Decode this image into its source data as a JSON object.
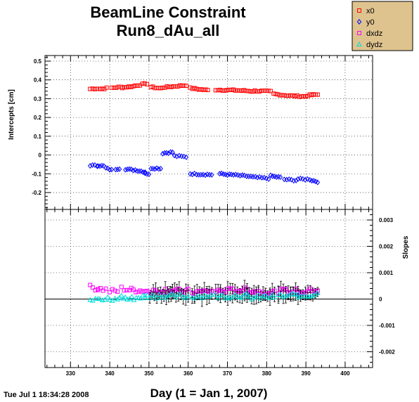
{
  "chart_data": {
    "type": "scatter",
    "title_lines": [
      "BeamLine Constraint",
      "Run8_dAu_all"
    ],
    "xlabel": "Day (1 = Jan 1, 2007)",
    "timestamp": "Tue Jul  1 18:34:28 2008",
    "grid": true,
    "legend_placement": "top-right",
    "colors": {
      "x0": "#ff0000",
      "y0": "#0000ff",
      "dxdz": "#ff00ff",
      "dydz": "#00dddd",
      "legend_bg": "#dec38f"
    },
    "legend": [
      {
        "key": "x0",
        "label": "x0",
        "marker": "open-square"
      },
      {
        "key": "y0",
        "label": "y0",
        "marker": "open-diamond"
      },
      {
        "key": "dxdz",
        "label": "dxdz",
        "marker": "open-square"
      },
      {
        "key": "dydz",
        "label": "dydz",
        "marker": "open-triangle"
      }
    ],
    "xlim": [
      323.5,
      407
    ],
    "xticks": [
      330,
      340,
      350,
      360,
      370,
      380,
      390,
      400
    ],
    "xtick_labels": [
      "330",
      "340",
      "350",
      "360",
      "370",
      "380",
      "390",
      "400"
    ],
    "top_panel": {
      "ylabel": "Intercepts [cm]",
      "ylim": [
        -0.29,
        0.53
      ],
      "yticks": [
        0.5,
        0.4,
        0.3,
        0.2,
        0.1,
        0,
        -0.1,
        -0.2
      ],
      "ytick_labels": [
        "0.5",
        "0.4",
        "0.3",
        "0.2",
        "0.1",
        "0",
        "-0.1",
        "-0.2"
      ],
      "series": [
        {
          "key": "x0",
          "segments": [
            [
              335.0,
              0.352,
              336.8,
              0.355
            ],
            [
              337.5,
              0.352,
              339.2,
              0.356
            ],
            [
              340.5,
              0.358,
              342.8,
              0.362
            ],
            [
              343.2,
              0.36,
              346.0,
              0.366
            ],
            [
              346.5,
              0.37,
              349.5,
              0.38
            ],
            [
              350.5,
              0.362,
              353.0,
              0.355
            ],
            [
              353.5,
              0.36,
              359.5,
              0.372
            ],
            [
              360.5,
              0.356,
              365.0,
              0.345
            ],
            [
              367.0,
              0.348,
              371.5,
              0.345
            ],
            [
              372.0,
              0.345,
              376.5,
              0.34
            ],
            [
              377.0,
              0.342,
              381.0,
              0.338
            ],
            [
              381.8,
              0.325,
              385.0,
              0.318
            ],
            [
              385.5,
              0.316,
              390.0,
              0.312
            ],
            [
              390.5,
              0.318,
              393.0,
              0.322
            ]
          ]
        },
        {
          "key": "y0",
          "segments": [
            [
              335.0,
              -0.055,
              336.8,
              -0.058
            ],
            [
              337.0,
              -0.055,
              338.5,
              -0.06
            ],
            [
              339.0,
              -0.07,
              340.5,
              -0.08
            ],
            [
              341.5,
              -0.075,
              342.5,
              -0.072
            ],
            [
              344.0,
              -0.075,
              346.0,
              -0.08
            ],
            [
              346.5,
              -0.08,
              349.0,
              -0.09
            ],
            [
              349.0,
              -0.095,
              350.0,
              -0.105
            ],
            [
              350.5,
              -0.07,
              353.0,
              -0.072
            ],
            [
              353.5,
              0.01,
              356.0,
              0.015
            ],
            [
              356.5,
              -0.005,
              359.5,
              -0.01
            ],
            [
              360.5,
              -0.1,
              366.0,
              -0.105
            ],
            [
              368.0,
              -0.1,
              370.5,
              -0.105
            ],
            [
              371.0,
              -0.105,
              376.0,
              -0.115
            ],
            [
              376.5,
              -0.118,
              380.5,
              -0.125
            ],
            [
              381.0,
              -0.112,
              383.5,
              -0.12
            ],
            [
              384.5,
              -0.13,
              387.5,
              -0.135
            ],
            [
              388.0,
              -0.128,
              391.0,
              -0.13
            ],
            [
              391.5,
              -0.135,
              393.0,
              -0.142
            ]
          ]
        }
      ]
    },
    "bottom_panel": {
      "ylabel": "Slopes",
      "ylim": [
        -0.0026,
        0.0034
      ],
      "yticks": [
        0.003,
        0.002,
        0.001,
        0,
        -0.001,
        -0.002
      ],
      "ytick_labels": [
        "0.003",
        "0.002",
        "0.001",
        "0",
        "-0.001",
        "-0.002"
      ],
      "series": [
        {
          "key": "dxdz",
          "segments": [
            [
              335.0,
              0.00045,
              337.0,
              0.0004
            ],
            [
              337.0,
              0.0004,
              339.0,
              0.00035
            ],
            [
              340.0,
              0.0003,
              342.0,
              0.0003
            ],
            [
              343.0,
              0.0004,
              345.0,
              0.00035
            ],
            [
              345.5,
              0.00035,
              350.0,
              0.0003
            ],
            [
              350.5,
              0.0003,
              356.0,
              0.00035
            ],
            [
              356.0,
              0.0003,
              360.0,
              0.0003
            ],
            [
              361.0,
              0.00025,
              366.0,
              0.0003
            ],
            [
              367.0,
              0.0003,
              375.0,
              0.00035
            ],
            [
              375.0,
              0.0003,
              382.0,
              0.00025
            ],
            [
              383.0,
              0.0003,
              388.0,
              0.0003
            ],
            [
              388.0,
              0.00025,
              393.0,
              0.00035
            ]
          ]
        },
        {
          "key": "dydz",
          "segments": [
            [
              335.0,
              0.0,
              337.0,
              5e-05
            ],
            [
              337.5,
              -5e-05,
              339.5,
              0.0
            ],
            [
              340.0,
              -5e-05,
              342.0,
              0.0
            ],
            [
              342.5,
              0.0001,
              344.0,
              5e-05
            ],
            [
              344.5,
              0.0,
              349.0,
              0.0001
            ],
            [
              349.0,
              0.0001,
              355.0,
              0.00015
            ],
            [
              355.0,
              0.0001,
              360.0,
              0.0001
            ],
            [
              361.0,
              0.0001,
              366.0,
              0.00015
            ],
            [
              367.0,
              0.0001,
              375.0,
              0.00015
            ],
            [
              375.0,
              5e-05,
              382.0,
              0.0001
            ],
            [
              383.0,
              0.0001,
              388.0,
              0.00015
            ],
            [
              388.0,
              0.0001,
              393.0,
              0.0002
            ]
          ]
        }
      ]
    }
  }
}
